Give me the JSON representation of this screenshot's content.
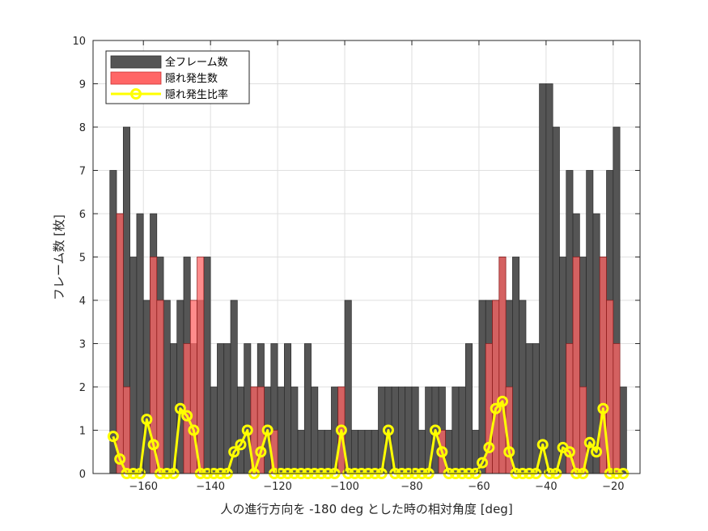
{
  "chart_data": {
    "type": "bar",
    "xlabel": "人の進行方向を -180 deg とした時の相対角度 [deg]",
    "ylabel": "フレーム数 [枚]",
    "xlim": [
      -175,
      -12
    ],
    "ylim": [
      0,
      10
    ],
    "xticks": [
      -160,
      -140,
      -120,
      -100,
      -80,
      -60,
      -40,
      -20
    ],
    "yticks": [
      0,
      1,
      2,
      3,
      4,
      5,
      6,
      7,
      8,
      9,
      10
    ],
    "grid": true,
    "legend_position": "top-left",
    "bin_width": 2,
    "x": [
      -169,
      -167,
      -165,
      -163,
      -161,
      -159,
      -157,
      -155,
      -153,
      -151,
      -149,
      -147,
      -145,
      -143,
      -141,
      -139,
      -137,
      -135,
      -133,
      -131,
      -129,
      -127,
      -125,
      -123,
      -121,
      -119,
      -117,
      -115,
      -113,
      -111,
      -109,
      -107,
      -105,
      -103,
      -101,
      -99,
      -97,
      -95,
      -93,
      -91,
      -89,
      -87,
      -85,
      -83,
      -81,
      -79,
      -77,
      -75,
      -73,
      -71,
      -69,
      -67,
      -65,
      -63,
      -61,
      -59,
      -57,
      -55,
      -53,
      -51,
      -49,
      -47,
      -45,
      -43,
      -41,
      -39,
      -37,
      -35,
      -33,
      -31,
      -29,
      -27,
      -25,
      -23,
      -21,
      -19,
      -17
    ],
    "series": [
      {
        "name": "全フレーム数",
        "color": "#555555",
        "values": [
          7,
          6,
          8,
          5,
          6,
          4,
          6,
          5,
          4,
          3,
          4,
          5,
          3,
          4,
          5,
          2,
          3,
          3,
          4,
          2,
          3,
          2,
          3,
          2,
          3,
          2,
          3,
          2,
          1,
          3,
          2,
          1,
          1,
          2,
          2,
          4,
          1,
          1,
          1,
          1,
          2,
          2,
          2,
          2,
          2,
          2,
          1,
          2,
          2,
          2,
          1,
          2,
          2,
          3,
          1,
          4,
          4,
          4,
          5,
          4,
          5,
          4,
          3,
          3,
          9,
          9,
          8,
          5,
          7,
          6,
          5,
          7,
          6,
          5,
          7,
          8,
          2
        ]
      },
      {
        "name": "隠れ発生数",
        "color": "#ff6666",
        "values": [
          0,
          6,
          2,
          0,
          0,
          0,
          5,
          4,
          0,
          0,
          0,
          3,
          4,
          5,
          0,
          0,
          0,
          0,
          0,
          0,
          0,
          2,
          2,
          0,
          1,
          0,
          0,
          0,
          0,
          0,
          0,
          0,
          0,
          0,
          2,
          0,
          0,
          0,
          0,
          0,
          0,
          0,
          0,
          0,
          0,
          0,
          0,
          0,
          0,
          1,
          0,
          0,
          0,
          0,
          0,
          0,
          3,
          4,
          5,
          2,
          0,
          0,
          0,
          0,
          0,
          0,
          0,
          0,
          3,
          5,
          2,
          0,
          0,
          5,
          4,
          3,
          0
        ]
      },
      {
        "name": "隠れ発生比率",
        "color": "#ffff00",
        "values": [
          0.857,
          0.333,
          0,
          0,
          0,
          1.25,
          0.667,
          0,
          0,
          0,
          1.5,
          1.333,
          1,
          0,
          0,
          0,
          0,
          0,
          0.5,
          0.667,
          1,
          0,
          0.5,
          1,
          0,
          0,
          0,
          0,
          0,
          0,
          0,
          0,
          0,
          0,
          1,
          0,
          0,
          0,
          0,
          0,
          0,
          1,
          0,
          0,
          0,
          0,
          0,
          0,
          1,
          0.5,
          0,
          0,
          0,
          0,
          0,
          0.25,
          0.6,
          1.5,
          1.667,
          0.5,
          0,
          0,
          0,
          0,
          0.667,
          0,
          0,
          0.6,
          0.5,
          0,
          0,
          0.714,
          0.5,
          1.5,
          0,
          0,
          0
        ]
      }
    ]
  }
}
